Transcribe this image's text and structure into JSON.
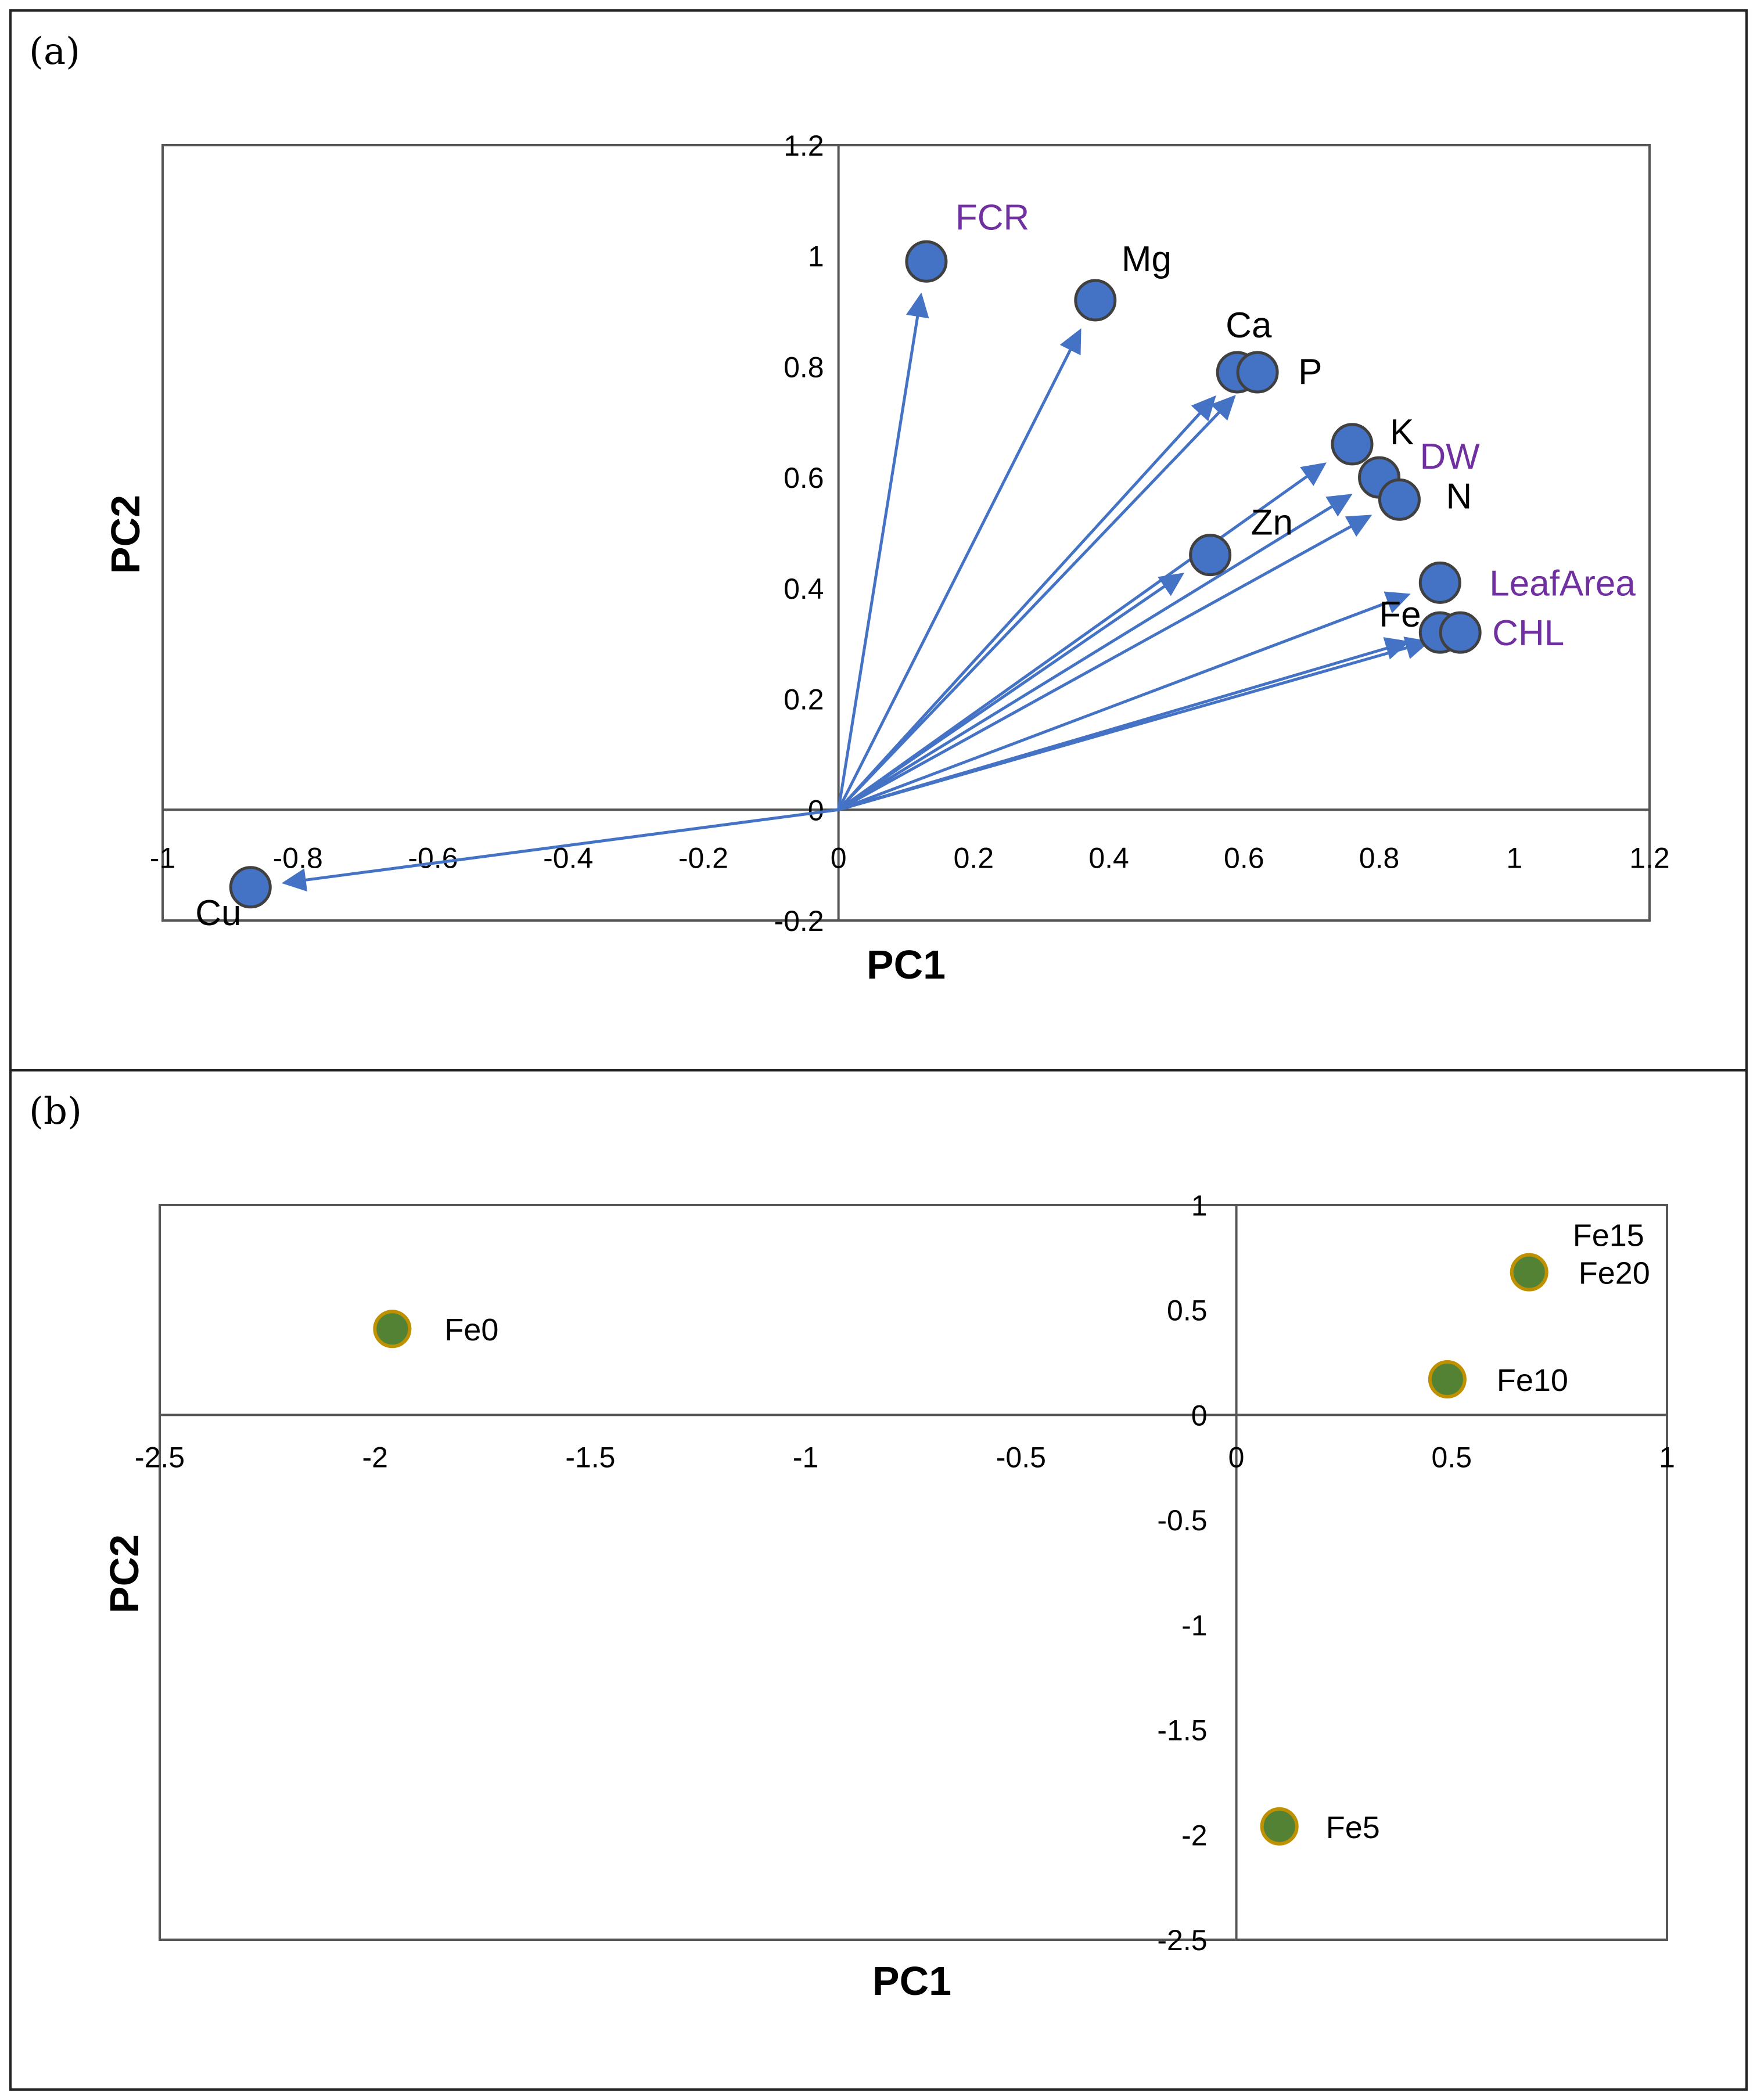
{
  "chart_data": [
    {
      "type": "scatter",
      "panel_label": "(a)",
      "subtype": "pca_loading_biplot",
      "xlabel": "PC1",
      "ylabel": "PC2",
      "xlim": [
        -1,
        1.2
      ],
      "ylim": [
        -0.2,
        1.2
      ],
      "x_ticks": [
        "-1",
        "-0.8",
        "-0.6",
        "-0.4",
        "-0.2",
        "0",
        "0.2",
        "0.4",
        "0.6",
        "0.8",
        "1",
        "1.2"
      ],
      "y_ticks": [
        "1.2",
        "1",
        "0.8",
        "0.6",
        "0.4",
        "0.2",
        "0",
        "-0.2"
      ],
      "grid": false,
      "colors": {
        "marker": "#4472C4",
        "arrow": "#4472C4",
        "growth_label": "#7030A0",
        "nutrient_label": "#000000"
      },
      "points": [
        {
          "name": "FCR",
          "x": 0.13,
          "y": 0.99,
          "label_color": "#7030A0"
        },
        {
          "name": "Mg",
          "x": 0.38,
          "y": 0.92,
          "label_color": "#000000"
        },
        {
          "name": "Ca",
          "x": 0.59,
          "y": 0.79,
          "label_color": "#000000"
        },
        {
          "name": "P",
          "x": 0.62,
          "y": 0.79,
          "label_color": "#000000"
        },
        {
          "name": "K",
          "x": 0.76,
          "y": 0.66,
          "label_color": "#000000"
        },
        {
          "name": "DW",
          "x": 0.8,
          "y": 0.6,
          "label_color": "#7030A0"
        },
        {
          "name": "N",
          "x": 0.83,
          "y": 0.56,
          "label_color": "#000000"
        },
        {
          "name": "Zn",
          "x": 0.55,
          "y": 0.46,
          "label_color": "#000000"
        },
        {
          "name": "LeafArea",
          "x": 0.89,
          "y": 0.41,
          "label_color": "#7030A0"
        },
        {
          "name": "Fe",
          "x": 0.89,
          "y": 0.32,
          "label_color": "#000000"
        },
        {
          "name": "CHL",
          "x": 0.92,
          "y": 0.32,
          "label_color": "#7030A0"
        },
        {
          "name": "Cu",
          "x": -0.87,
          "y": -0.14,
          "label_color": "#000000"
        }
      ]
    },
    {
      "type": "scatter",
      "panel_label": "(b)",
      "subtype": "pca_score_plot",
      "xlabel": "PC1",
      "ylabel": "PC2",
      "xlim": [
        -2.5,
        1
      ],
      "ylim": [
        -2.5,
        1
      ],
      "x_ticks": [
        "-2.5",
        "-2",
        "-1.5",
        "-1",
        "-0.5",
        "0",
        "0.5",
        "1"
      ],
      "y_ticks": [
        "1",
        "0.5",
        "0",
        "-0.5",
        "-1",
        "-1.5",
        "-2",
        "-2.5"
      ],
      "grid": false,
      "colors": {
        "marker": "#548235",
        "marker_edge": "#BF9000"
      },
      "points": [
        {
          "name": "Fe0",
          "x": -1.96,
          "y": 0.41
        },
        {
          "name": "Fe5",
          "x": 0.1,
          "y": -1.96
        },
        {
          "name": "Fe10",
          "x": 0.49,
          "y": 0.17
        },
        {
          "name": "Fe15",
          "x": 0.68,
          "y": 0.68
        },
        {
          "name": "Fe20",
          "x": 0.68,
          "y": 0.68
        }
      ]
    }
  ]
}
